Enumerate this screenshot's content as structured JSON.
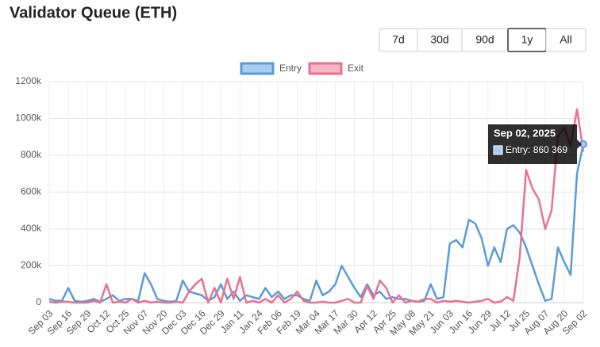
{
  "chart_data": {
    "type": "line",
    "title": "Validator Queue (ETH)",
    "buttons": [
      "7d",
      "30d",
      "90d",
      "1y",
      "All"
    ],
    "selected_button": 3,
    "categories": [
      "Sep 03",
      null,
      null,
      "Sep 16",
      null,
      null,
      "Sep 29",
      null,
      null,
      "Oct 12",
      null,
      null,
      "Oct 25",
      null,
      null,
      "Nov 07",
      null,
      null,
      "Nov 20",
      null,
      null,
      "Dec 03",
      null,
      null,
      "Dec 16",
      null,
      null,
      "Dec 29",
      null,
      null,
      "Jan 11",
      null,
      null,
      "Jan 24",
      null,
      null,
      "Feb 06",
      null,
      null,
      "Feb 19",
      null,
      null,
      "Mar 04",
      null,
      null,
      "Mar 17",
      null,
      null,
      "Mar 30",
      null,
      null,
      "Apr 12",
      null,
      null,
      "Apr 25",
      null,
      null,
      "May 08",
      null,
      null,
      "May 21",
      null,
      null,
      "Jun 03",
      null,
      null,
      "Jun 16",
      null,
      null,
      "Jun 29",
      null,
      null,
      "Jul 12",
      null,
      null,
      "Jul 25",
      null,
      null,
      "Aug 07",
      null,
      null,
      "Aug 20",
      null,
      null,
      "Sep 02"
    ],
    "series": [
      {
        "name": "Entry",
        "color": "#5b9bd5",
        "legend_fill": "#a9cdf0",
        "values": [
          20000,
          10000,
          10000,
          80000,
          10000,
          5000,
          10000,
          20000,
          5000,
          20000,
          40000,
          10000,
          20000,
          20000,
          10000,
          160000,
          100000,
          20000,
          10000,
          5000,
          10000,
          120000,
          60000,
          50000,
          40000,
          10000,
          30000,
          100000,
          20000,
          60000,
          10000,
          40000,
          30000,
          20000,
          80000,
          30000,
          60000,
          20000,
          40000,
          40000,
          20000,
          10000,
          120000,
          40000,
          60000,
          100000,
          200000,
          140000,
          80000,
          30000,
          100000,
          40000,
          60000,
          20000,
          30000,
          20000,
          20000,
          10000,
          5000,
          10000,
          100000,
          20000,
          30000,
          320000,
          340000,
          300000,
          450000,
          430000,
          350000,
          200000,
          300000,
          220000,
          400000,
          420000,
          380000,
          300000,
          200000,
          100000,
          10000,
          20000,
          300000,
          220000,
          150000,
          700000,
          860369
        ]
      },
      {
        "name": "Exit",
        "color": "#e8728f",
        "legend_fill": "#f4b6c4",
        "values": [
          5000,
          0,
          5000,
          5000,
          0,
          0,
          0,
          10000,
          0,
          100000,
          0,
          5000,
          0,
          20000,
          0,
          10000,
          0,
          5000,
          0,
          0,
          5000,
          0,
          60000,
          100000,
          130000,
          0,
          80000,
          0,
          130000,
          20000,
          140000,
          0,
          10000,
          0,
          20000,
          0,
          40000,
          0,
          20000,
          60000,
          10000,
          0,
          0,
          5000,
          0,
          0,
          10000,
          20000,
          0,
          0,
          90000,
          20000,
          120000,
          80000,
          0,
          40000,
          0,
          10000,
          5000,
          20000,
          20000,
          0,
          10000,
          5000,
          10000,
          5000,
          0,
          5000,
          10000,
          20000,
          0,
          5000,
          30000,
          10000,
          250000,
          720000,
          620000,
          560000,
          400000,
          500000,
          900000,
          950000,
          850000,
          1050000,
          820000
        ]
      }
    ],
    "ylim": [
      0,
      1200000
    ],
    "yticks": [
      0,
      {
        "value": 200000,
        "label": "200k"
      },
      {
        "value": 400000,
        "label": "400k"
      },
      {
        "value": 600000,
        "label": "600k"
      },
      {
        "value": 800000,
        "label": "800k"
      },
      {
        "value": 1000000,
        "label": "1000k"
      },
      {
        "value": 1200000,
        "label": "1200k"
      }
    ],
    "grid": true,
    "legend": "top",
    "tooltip": {
      "title": "Sep 02, 2025",
      "series": 0,
      "index": 84,
      "value_label": "860 369"
    }
  }
}
